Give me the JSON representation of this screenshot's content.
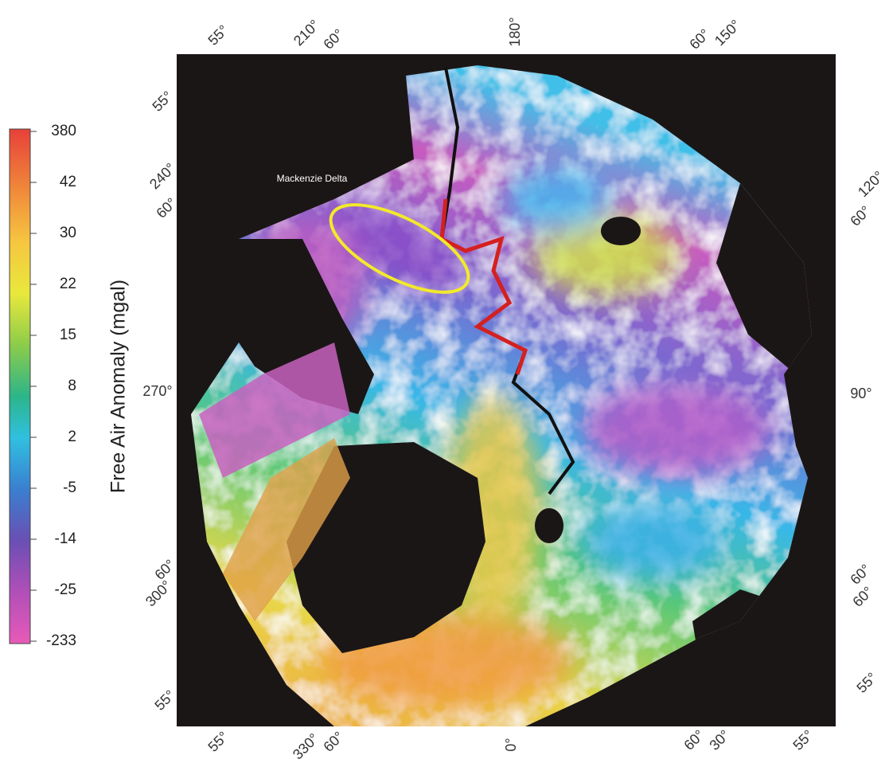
{
  "colorbar": {
    "title": "Free Air Anomaly (mgal)",
    "labels": [
      380,
      42,
      30,
      22,
      15,
      8,
      2,
      -5,
      -14,
      -25,
      -233
    ]
  },
  "map": {
    "annotation": "Mackenzie Delta",
    "top_labels": [
      "55°",
      "210°",
      "60°",
      "180°",
      "60°",
      "150°"
    ],
    "left_labels": [
      "55°",
      "240°",
      "60°",
      "270°",
      "60°",
      "300°",
      "55°"
    ],
    "right_labels": [
      "120°",
      "60°",
      "90°",
      "60°",
      "60°",
      "55°"
    ],
    "bottom_labels": [
      "55°",
      "330°",
      "60°",
      "0°",
      "60°",
      "30°",
      "55°"
    ]
  }
}
